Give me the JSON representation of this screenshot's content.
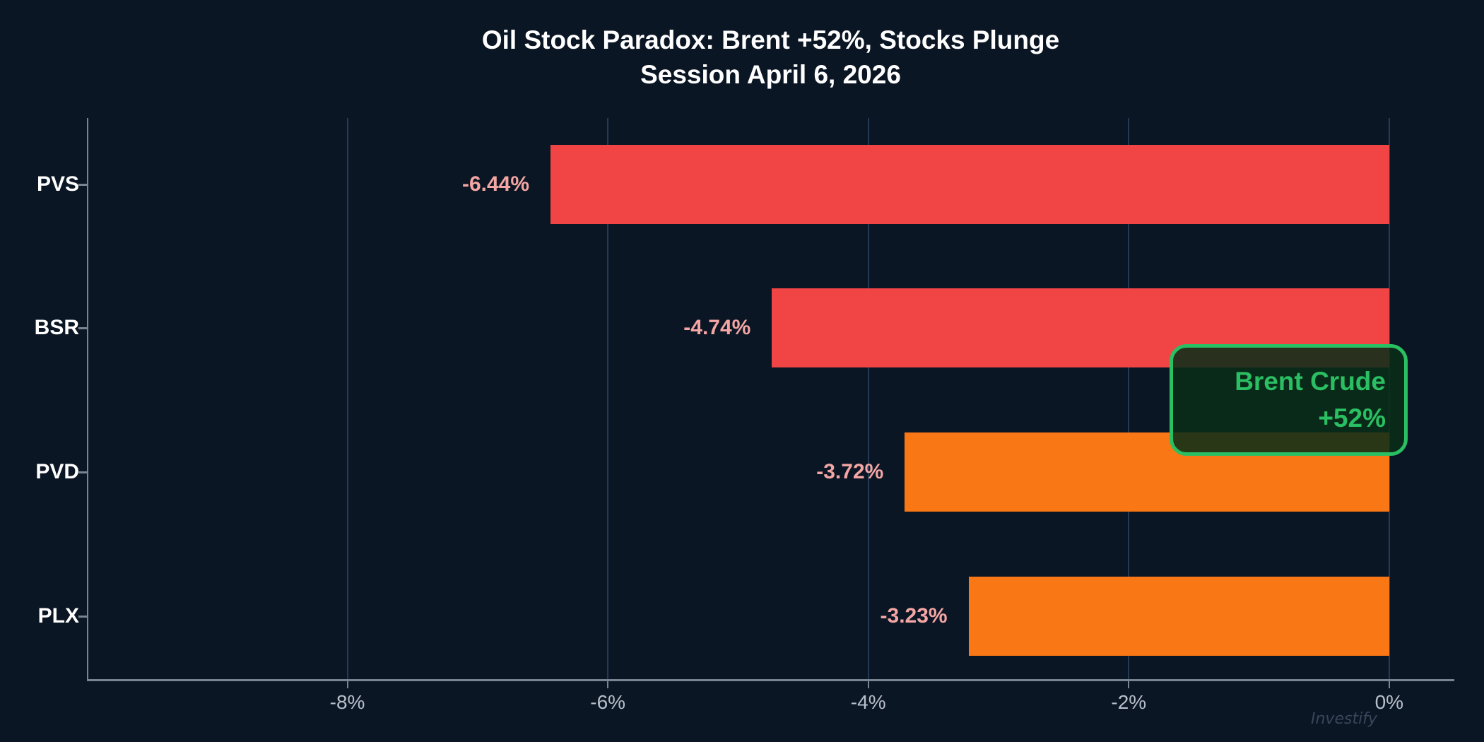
{
  "title": {
    "line1": "Oil Stock Paradox: Brent +52%, Stocks Plunge",
    "line2": "Session April 6, 2026"
  },
  "annotation": {
    "line1": "Brent Crude",
    "line2": "+52%",
    "text_color": "#2abf62",
    "border_color": "#2abf62"
  },
  "watermark": "Investify",
  "colors": {
    "background": "#0b1624",
    "red_bar": "#f14444",
    "orange_bar": "#f97714",
    "value_label": "#f3a6a4",
    "gridline": "#253a55",
    "axis": "#78848f",
    "tick_label": "#b7bfca",
    "title": "#ffffff"
  },
  "chart_data": {
    "type": "bar",
    "orientation": "horizontal",
    "title": "Oil Stock Paradox: Brent +52%, Stocks Plunge — Session April 6, 2026",
    "categories": [
      "PVS",
      "BSR",
      "PVD",
      "PLX"
    ],
    "values": [
      -6.44,
      -4.74,
      -3.72,
      -3.23
    ],
    "value_labels": [
      "-6.44%",
      "-4.74%",
      "-3.72%",
      "-3.23%"
    ],
    "bar_colors": [
      "#f14444",
      "#f14444",
      "#f97714",
      "#f97714"
    ],
    "xlim": [
      -10,
      0.5
    ],
    "xticks": [
      -8,
      -6,
      -4,
      -2,
      0
    ],
    "xtick_labels": [
      "-8%",
      "-6%",
      "-4%",
      "-2%",
      "0%"
    ],
    "grid": "vertical-only",
    "legend": "none",
    "annotation_value": "+52%",
    "annotation_series": "Brent Crude"
  }
}
